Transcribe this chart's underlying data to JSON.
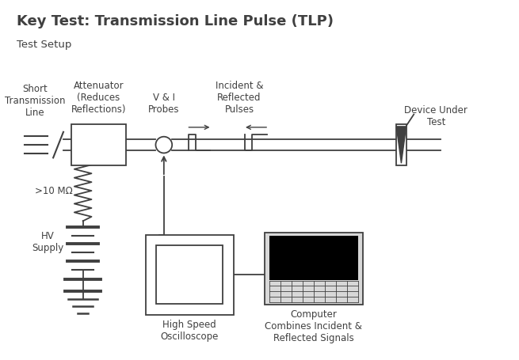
{
  "title": "Key Test: Transmission Line Pulse (TLP)",
  "subtitle": "Test Setup",
  "background_color": "#ffffff",
  "line_color": "#404040",
  "title_fontsize": 13,
  "subtitle_fontsize": 9.5,
  "label_fontsize": 8.5,
  "fig_width": 6.55,
  "fig_height": 4.55,
  "dpi": 100,
  "xlim": [
    0,
    13
  ],
  "ylim": [
    0,
    9
  ]
}
